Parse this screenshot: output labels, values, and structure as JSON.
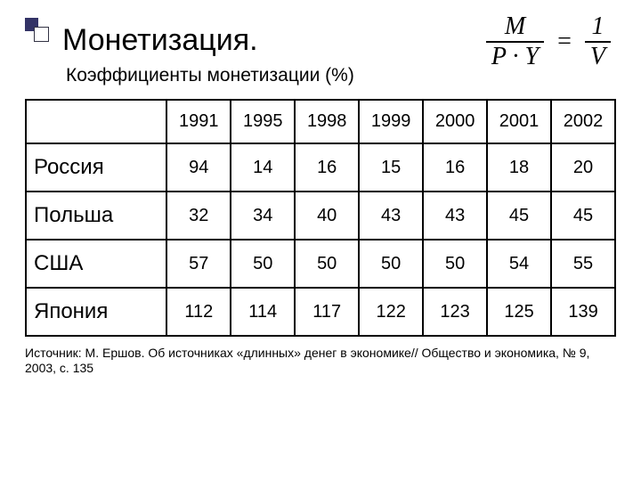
{
  "title": "Монетизация.",
  "subtitle": "Коэффициенты монетизации (%)",
  "formula": {
    "left_num": "M",
    "left_den": "P · Y",
    "right_num": "1",
    "right_den": "V"
  },
  "table": {
    "years": [
      "1991",
      "1995",
      "1998",
      "1999",
      "2000",
      "2001",
      "2002"
    ],
    "rows": [
      {
        "country": "Россия",
        "values": [
          "94",
          "14",
          "16",
          "15",
          "16",
          "18",
          "20"
        ]
      },
      {
        "country": "Польша",
        "values": [
          "32",
          "34",
          "40",
          "43",
          "43",
          "45",
          "45"
        ]
      },
      {
        "country": "США",
        "values": [
          "57",
          "50",
          "50",
          "50",
          "50",
          "54",
          "55"
        ]
      },
      {
        "country": "Япония",
        "values": [
          "112",
          "114",
          "117",
          "122",
          "123",
          "125",
          "139"
        ]
      }
    ]
  },
  "source": "Источник: М. Ершов. Об источниках «длинных» денег в экономике// Общество и экономика, № 9, 2003, с. 135",
  "colors": {
    "text": "#000000",
    "background": "#ffffff",
    "deco_fill": "#333366",
    "border": "#000000"
  },
  "fonts": {
    "body": "Arial",
    "formula": "Times New Roman",
    "title_size": 34,
    "subtitle_size": 21,
    "year_size": 20,
    "country_size": 24,
    "value_size": 20,
    "source_size": 14
  }
}
